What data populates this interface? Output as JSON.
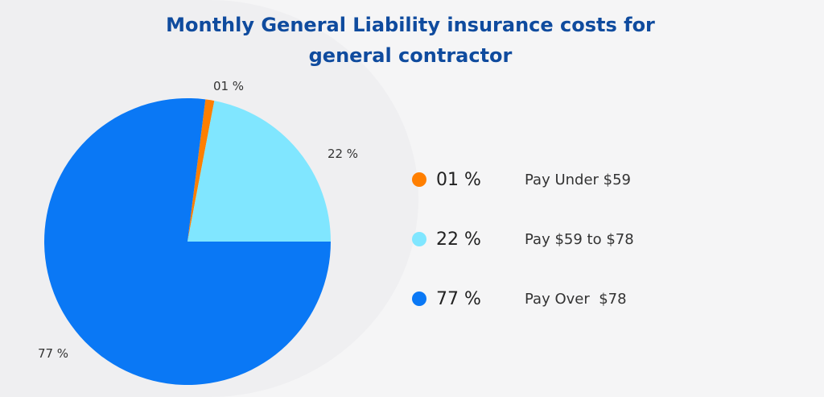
{
  "chart_data": {
    "type": "pie",
    "title": "Monthly General Liability insurance costs for general contractor",
    "slices": [
      {
        "label": "Pay Under $59",
        "value": 1,
        "display": "01 %",
        "color": "#ff7f00"
      },
      {
        "label": "Pay $59 to $78",
        "value": 22,
        "display": "22 %",
        "color": "#80e6ff"
      },
      {
        "label": "Pay Over  $78",
        "value": 77,
        "display": "77 %",
        "color": "#0a78f5"
      }
    ],
    "legend_position": "right"
  }
}
